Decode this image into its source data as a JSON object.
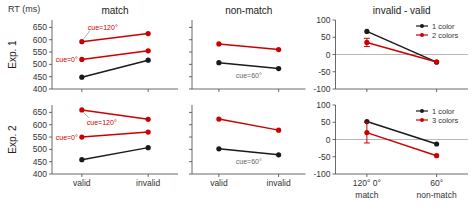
{
  "chart_data": [
    {
      "type": "line",
      "title": "match",
      "ylabel": "RT (ms)",
      "categories": [
        null,
        null
      ],
      "series": [
        {
          "color": "#1a1a1a",
          "values": [
            448,
            517
          ]
        },
        {
          "color": "#cc0000",
          "values": [
            520,
            555
          ]
        },
        {
          "color": "#cc0000",
          "values": [
            592,
            625
          ]
        }
      ],
      "ylim": [
        400,
        680
      ],
      "yticks": [
        400,
        450,
        500,
        550,
        600,
        650
      ],
      "marker": "circle",
      "tick_labels": "y",
      "annotations": [
        "cue=120°",
        "cue=0°",
        "Exp. 1"
      ]
    },
    {
      "type": "line",
      "title": "non-match",
      "categories": [
        null,
        null
      ],
      "series": [
        {
          "color": "#cc0000",
          "values": [
            583,
            560
          ]
        },
        {
          "color": "#1a1a1a",
          "values": [
            507,
            483
          ]
        }
      ],
      "ylim": [
        400,
        680
      ],
      "yticks": [
        400,
        450,
        500,
        550,
        600,
        650
      ],
      "marker": "circle",
      "tick_labels": false,
      "annotations": [
        "cue=60°"
      ]
    },
    {
      "type": "line",
      "title": "invalid - valid",
      "categories": [
        null,
        null
      ],
      "series": [
        {
          "name": "1 color",
          "color": "#1a1a1a",
          "values": [
            67,
            -22
          ]
        },
        {
          "name": "2 colors",
          "color": "#cc0000",
          "values": [
            35,
            -22
          ],
          "errors": [
            12,
            null
          ]
        }
      ],
      "ylim": [
        -100,
        100
      ],
      "yticks": [
        -100,
        -50,
        0,
        50,
        100
      ],
      "marker": "circle",
      "tick_labels": "y",
      "legend": "upper right"
    },
    {
      "type": "line",
      "categories": [
        "valid",
        "invalid"
      ],
      "series": [
        {
          "color": "#1a1a1a",
          "values": [
            458,
            507
          ]
        },
        {
          "color": "#cc0000",
          "values": [
            550,
            570
          ]
        },
        {
          "color": "#cc0000",
          "values": [
            660,
            622
          ]
        }
      ],
      "ylim": [
        400,
        680
      ],
      "yticks": [
        400,
        450,
        500,
        550,
        600,
        650
      ],
      "marker": "circle",
      "annotations": [
        "cue=120°",
        "cue=0°",
        "Exp. 2"
      ]
    },
    {
      "type": "line",
      "categories": [
        "valid",
        "invalid"
      ],
      "series": [
        {
          "color": "#cc0000",
          "values": [
            623,
            578
          ]
        },
        {
          "color": "#1a1a1a",
          "values": [
            502,
            478
          ]
        }
      ],
      "ylim": [
        400,
        680
      ],
      "yticks": [
        400,
        450,
        500,
        550,
        600,
        650
      ],
      "marker": "circle",
      "tick_labels": "x",
      "annotations": [
        "cue=60°"
      ]
    },
    {
      "type": "line",
      "categories": [
        "120° 0°",
        "60°"
      ],
      "series": [
        {
          "name": "1 color",
          "color": "#1a1a1a",
          "values": [
            52,
            -13
          ]
        },
        {
          "name": "3 colors",
          "color": "#cc0000",
          "values": [
            20,
            -47
          ],
          "errors": [
            30,
            null
          ]
        }
      ],
      "ylim": [
        -100,
        100
      ],
      "yticks": [
        -100,
        -50,
        0,
        50,
        100
      ],
      "marker": "circle",
      "legend": "upper right",
      "annotations": [
        "match",
        "non-match"
      ]
    }
  ]
}
